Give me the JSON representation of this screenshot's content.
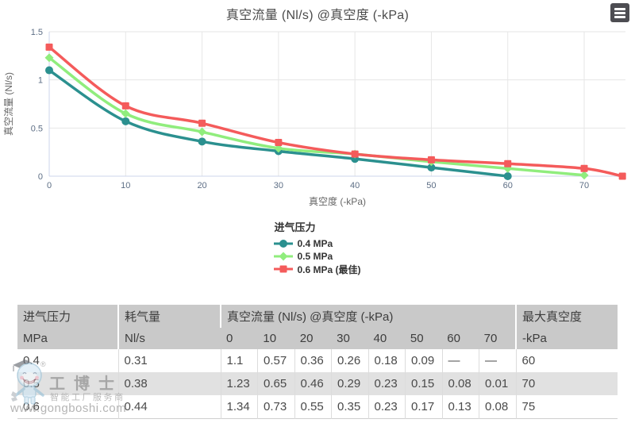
{
  "chart_data": {
    "type": "line",
    "title": "真空流量 (Nl/s) @真空度 (-kPa)",
    "xlabel": "真空度 (-kPa)",
    "ylabel": "真空流量 (Nl/s)",
    "xlim": [
      0,
      75.5
    ],
    "ylim": [
      0,
      1.5
    ],
    "xticks": [
      0,
      10,
      20,
      30,
      40,
      50,
      60,
      70
    ],
    "yticks": [
      0,
      0.5,
      1,
      1.5
    ],
    "grid": true,
    "legend_title": "进气压力",
    "legend_position": "bottom-center",
    "series": [
      {
        "name": "0.4 MPa",
        "color": "#2b908f",
        "marker": "circle",
        "points": [
          [
            0,
            1.1
          ],
          [
            10,
            0.57
          ],
          [
            20,
            0.36
          ],
          [
            30,
            0.26
          ],
          [
            40,
            0.18
          ],
          [
            50,
            0.09
          ],
          [
            60,
            0
          ]
        ]
      },
      {
        "name": "0.5 MPa",
        "color": "#90ed7d",
        "marker": "diamond",
        "points": [
          [
            0,
            1.23
          ],
          [
            10,
            0.65
          ],
          [
            20,
            0.46
          ],
          [
            30,
            0.29
          ],
          [
            40,
            0.23
          ],
          [
            50,
            0.15
          ],
          [
            60,
            0.08
          ],
          [
            70,
            0.01
          ]
        ]
      },
      {
        "name": "0.6 MPa (最佳)",
        "color": "#f45b5b",
        "marker": "square",
        "points": [
          [
            0,
            1.34
          ],
          [
            10,
            0.73
          ],
          [
            20,
            0.55
          ],
          [
            30,
            0.35
          ],
          [
            40,
            0.23
          ],
          [
            50,
            0.17
          ],
          [
            60,
            0.13
          ],
          [
            70,
            0.08
          ],
          [
            75,
            0
          ]
        ]
      }
    ]
  },
  "toolbar": {
    "context_menu_icon": "hamburger-menu-icon"
  },
  "table": {
    "header": {
      "col_pressure": {
        "title": "进气压力",
        "unit": "MPa"
      },
      "col_consumption": {
        "title": "耗气量",
        "unit": "Nl/s"
      },
      "group_flow": {
        "title": "真空流量 (Nl/s) @真空度 (-kPa)",
        "subcols": [
          "0",
          "10",
          "20",
          "30",
          "40",
          "50",
          "60",
          "70"
        ]
      },
      "col_max_vacuum": {
        "title": "最大真空度",
        "unit": "-kPa"
      }
    },
    "rows": [
      [
        "0.4",
        "0.31",
        "1.1",
        "0.57",
        "0.36",
        "0.26",
        "0.18",
        "0.09",
        "—",
        "—",
        "60"
      ],
      [
        "0.5",
        "0.38",
        "1.23",
        "0.65",
        "0.46",
        "0.29",
        "0.23",
        "0.15",
        "0.08",
        "0.01",
        "70"
      ],
      [
        "0.6",
        "0.44",
        "1.34",
        "0.73",
        "0.55",
        "0.35",
        "0.23",
        "0.17",
        "0.13",
        "0.08",
        "75"
      ]
    ]
  },
  "watermark": {
    "brand": "工博士",
    "registered": "®",
    "tagline": "智能工厂服务商",
    "url": "www.gongboshi.com"
  }
}
